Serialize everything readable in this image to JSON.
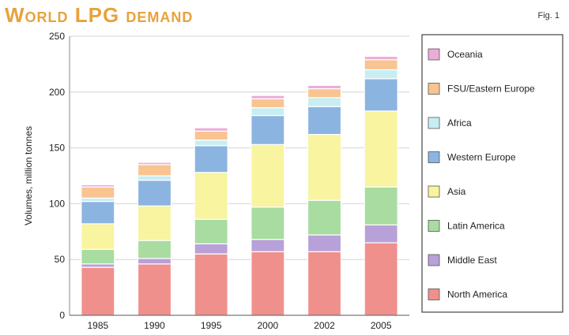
{
  "chart_data": {
    "type": "bar",
    "stacked": true,
    "title": "World LPG demand",
    "figure_label": "Fig. 1",
    "xlabel": "",
    "ylabel": "Volumes, million tonnes",
    "ylim": [
      0,
      250
    ],
    "yticks": [
      0,
      50,
      100,
      150,
      200,
      250
    ],
    "categories": [
      "1985",
      "1990",
      "1995",
      "2000",
      "2002",
      "2005"
    ],
    "legend_position": "right",
    "series": [
      {
        "name": "North America",
        "color": "#f0908c",
        "values": [
          43,
          46,
          55,
          57,
          57,
          65
        ]
      },
      {
        "name": "Middle East",
        "color": "#b8a0d8",
        "values": [
          3,
          5,
          9,
          11,
          15,
          16
        ]
      },
      {
        "name": "Latin America",
        "color": "#a8dca0",
        "values": [
          13,
          16,
          22,
          29,
          31,
          34
        ]
      },
      {
        "name": "Asia",
        "color": "#f8f4a0",
        "values": [
          23,
          31,
          42,
          56,
          59,
          68
        ]
      },
      {
        "name": "Western Europe",
        "color": "#8cb4e0",
        "values": [
          20,
          23,
          24,
          26,
          25,
          29
        ]
      },
      {
        "name": "Africa",
        "color": "#c8eef4",
        "values": [
          3,
          4,
          5,
          7,
          8,
          8
        ]
      },
      {
        "name": "FSU/Eastern Europe",
        "color": "#f8c490",
        "values": [
          10,
          10,
          8,
          8,
          8,
          9
        ]
      },
      {
        "name": "Oceania",
        "color": "#ecacd8",
        "values": [
          2,
          2,
          3,
          3,
          3,
          3
        ]
      }
    ]
  }
}
